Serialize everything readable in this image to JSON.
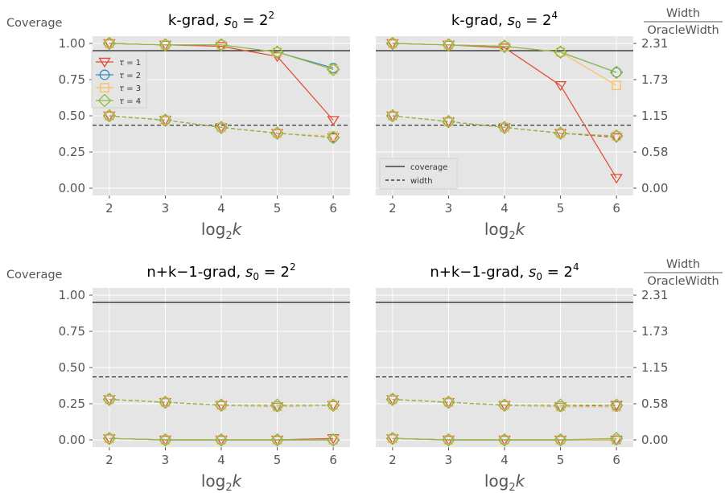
{
  "colors": {
    "tau1": "#E24A33",
    "tau2": "#348ABD",
    "tau3": "#FBC15E",
    "tau4": "#8EBA42",
    "ref": "#222222",
    "panel_bg": "#E5E5E5",
    "grid": "#FFFFFF"
  },
  "labels": {
    "left_axis": "Coverage",
    "right_axis_num": "Width",
    "right_axis_den": "OracleWidth",
    "xlabel_base": "log",
    "xlabel_sub": "2",
    "xlabel_var": "k"
  },
  "legend_tau": {
    "entries": [
      {
        "prefix": "τ = ",
        "value": "1",
        "marker": "triangle-down-icon"
      },
      {
        "prefix": "τ = ",
        "value": "2",
        "marker": "circle-icon"
      },
      {
        "prefix": "τ = ",
        "value": "3",
        "marker": "square-icon"
      },
      {
        "prefix": "τ = ",
        "value": "4",
        "marker": "diamond-icon"
      }
    ]
  },
  "legend_lines": {
    "coverage": "coverage",
    "width": "width"
  },
  "chart_data": [
    {
      "type": "line",
      "title_prefix": "k-grad, ",
      "title_exp": "2",
      "x": [
        2,
        3,
        4,
        5,
        6
      ],
      "ylim": [
        -0.05,
        1.05
      ],
      "yticks": [
        "0.00",
        "0.25",
        "0.50",
        "0.75",
        "1.00"
      ],
      "right_ticks": [
        "0.00",
        "0.58",
        "1.15",
        "1.73",
        "2.31"
      ],
      "coverage_ref": 0.95,
      "width_ref": 0.435,
      "coverage": [
        {
          "name": "τ = 1",
          "values": [
            1.0,
            0.99,
            0.98,
            0.91,
            0.47
          ]
        },
        {
          "name": "τ = 2",
          "values": [
            1.0,
            0.99,
            0.99,
            0.94,
            0.83
          ]
        },
        {
          "name": "τ = 3",
          "values": [
            1.0,
            0.99,
            0.99,
            0.94,
            0.82
          ]
        },
        {
          "name": "τ = 4",
          "values": [
            1.0,
            0.99,
            0.99,
            0.94,
            0.82
          ]
        }
      ],
      "width": [
        {
          "name": "τ = 1",
          "values": [
            0.5,
            0.47,
            0.42,
            0.38,
            0.35
          ]
        },
        {
          "name": "τ = 2",
          "values": [
            0.5,
            0.47,
            0.42,
            0.38,
            0.35
          ]
        },
        {
          "name": "τ = 3",
          "values": [
            0.5,
            0.47,
            0.42,
            0.38,
            0.36
          ]
        },
        {
          "name": "τ = 4",
          "values": [
            0.5,
            0.47,
            0.42,
            0.38,
            0.35
          ]
        }
      ]
    },
    {
      "type": "line",
      "title_prefix": "k-grad, ",
      "title_exp": "4",
      "x": [
        2,
        3,
        4,
        5,
        6
      ],
      "ylim": [
        -0.05,
        1.05
      ],
      "yticks": [
        "0.00",
        "0.25",
        "0.50",
        "0.75",
        "1.00"
      ],
      "right_ticks": [
        "0.00",
        "0.58",
        "1.15",
        "1.73",
        "2.31"
      ],
      "coverage_ref": 0.95,
      "width_ref": 0.435,
      "coverage": [
        {
          "name": "τ = 1",
          "values": [
            1.0,
            0.99,
            0.97,
            0.71,
            0.07
          ]
        },
        {
          "name": "τ = 2",
          "values": [
            1.0,
            0.99,
            0.98,
            0.94,
            0.8
          ]
        },
        {
          "name": "τ = 3",
          "values": [
            1.0,
            0.99,
            0.98,
            0.94,
            0.71
          ]
        },
        {
          "name": "τ = 4",
          "values": [
            1.0,
            0.99,
            0.98,
            0.94,
            0.8
          ]
        }
      ],
      "width": [
        {
          "name": "τ = 1",
          "values": [
            0.5,
            0.46,
            0.42,
            0.38,
            0.35
          ]
        },
        {
          "name": "τ = 2",
          "values": [
            0.5,
            0.46,
            0.42,
            0.38,
            0.36
          ]
        },
        {
          "name": "τ = 3",
          "values": [
            0.5,
            0.46,
            0.42,
            0.38,
            0.36
          ]
        },
        {
          "name": "τ = 4",
          "values": [
            0.5,
            0.46,
            0.42,
            0.38,
            0.36
          ]
        }
      ]
    },
    {
      "type": "line",
      "title_prefix": "n+k−1-grad, ",
      "title_exp": "2",
      "x": [
        2,
        3,
        4,
        5,
        6
      ],
      "ylim": [
        -0.05,
        1.05
      ],
      "yticks": [
        "0.00",
        "0.25",
        "0.50",
        "0.75",
        "1.00"
      ],
      "right_ticks": [
        "0.00",
        "0.58",
        "1.15",
        "1.73",
        "2.31"
      ],
      "coverage_ref": 0.95,
      "width_ref": 0.435,
      "coverage": [
        {
          "name": "τ = 1",
          "values": [
            0.01,
            0.0,
            0.0,
            0.0,
            0.01
          ]
        },
        {
          "name": "τ = 2",
          "values": [
            0.01,
            0.0,
            0.0,
            0.0,
            0.0
          ]
        },
        {
          "name": "τ = 3",
          "values": [
            0.01,
            0.0,
            0.0,
            0.0,
            0.0
          ]
        },
        {
          "name": "τ = 4",
          "values": [
            0.01,
            0.0,
            0.0,
            0.0,
            0.0
          ]
        }
      ],
      "width": [
        {
          "name": "τ = 1",
          "values": [
            0.28,
            0.26,
            0.24,
            0.23,
            0.24
          ]
        },
        {
          "name": "τ = 2",
          "values": [
            0.28,
            0.26,
            0.24,
            0.23,
            0.24
          ]
        },
        {
          "name": "τ = 3",
          "values": [
            0.28,
            0.26,
            0.24,
            0.23,
            0.24
          ]
        },
        {
          "name": "τ = 4",
          "values": [
            0.28,
            0.26,
            0.24,
            0.24,
            0.24
          ]
        }
      ]
    },
    {
      "type": "line",
      "title_prefix": "n+k−1-grad, ",
      "title_exp": "4",
      "x": [
        2,
        3,
        4,
        5,
        6
      ],
      "ylim": [
        -0.05,
        1.05
      ],
      "yticks": [
        "0.00",
        "0.25",
        "0.50",
        "0.75",
        "1.00"
      ],
      "right_ticks": [
        "0.00",
        "0.58",
        "1.15",
        "1.73",
        "2.31"
      ],
      "coverage_ref": 0.95,
      "width_ref": 0.435,
      "coverage": [
        {
          "name": "τ = 1",
          "values": [
            0.01,
            0.0,
            0.0,
            0.0,
            0.0
          ]
        },
        {
          "name": "τ = 2",
          "values": [
            0.01,
            0.0,
            0.0,
            0.0,
            0.0
          ]
        },
        {
          "name": "τ = 3",
          "values": [
            0.01,
            0.0,
            0.0,
            0.0,
            0.0
          ]
        },
        {
          "name": "τ = 4",
          "values": [
            0.01,
            0.0,
            0.0,
            0.0,
            0.01
          ]
        }
      ],
      "width": [
        {
          "name": "τ = 1",
          "values": [
            0.28,
            0.26,
            0.24,
            0.23,
            0.24
          ]
        },
        {
          "name": "τ = 2",
          "values": [
            0.28,
            0.26,
            0.24,
            0.23,
            0.23
          ]
        },
        {
          "name": "τ = 3",
          "values": [
            0.28,
            0.26,
            0.24,
            0.23,
            0.23
          ]
        },
        {
          "name": "τ = 4",
          "values": [
            0.28,
            0.26,
            0.24,
            0.24,
            0.24
          ]
        }
      ]
    }
  ]
}
